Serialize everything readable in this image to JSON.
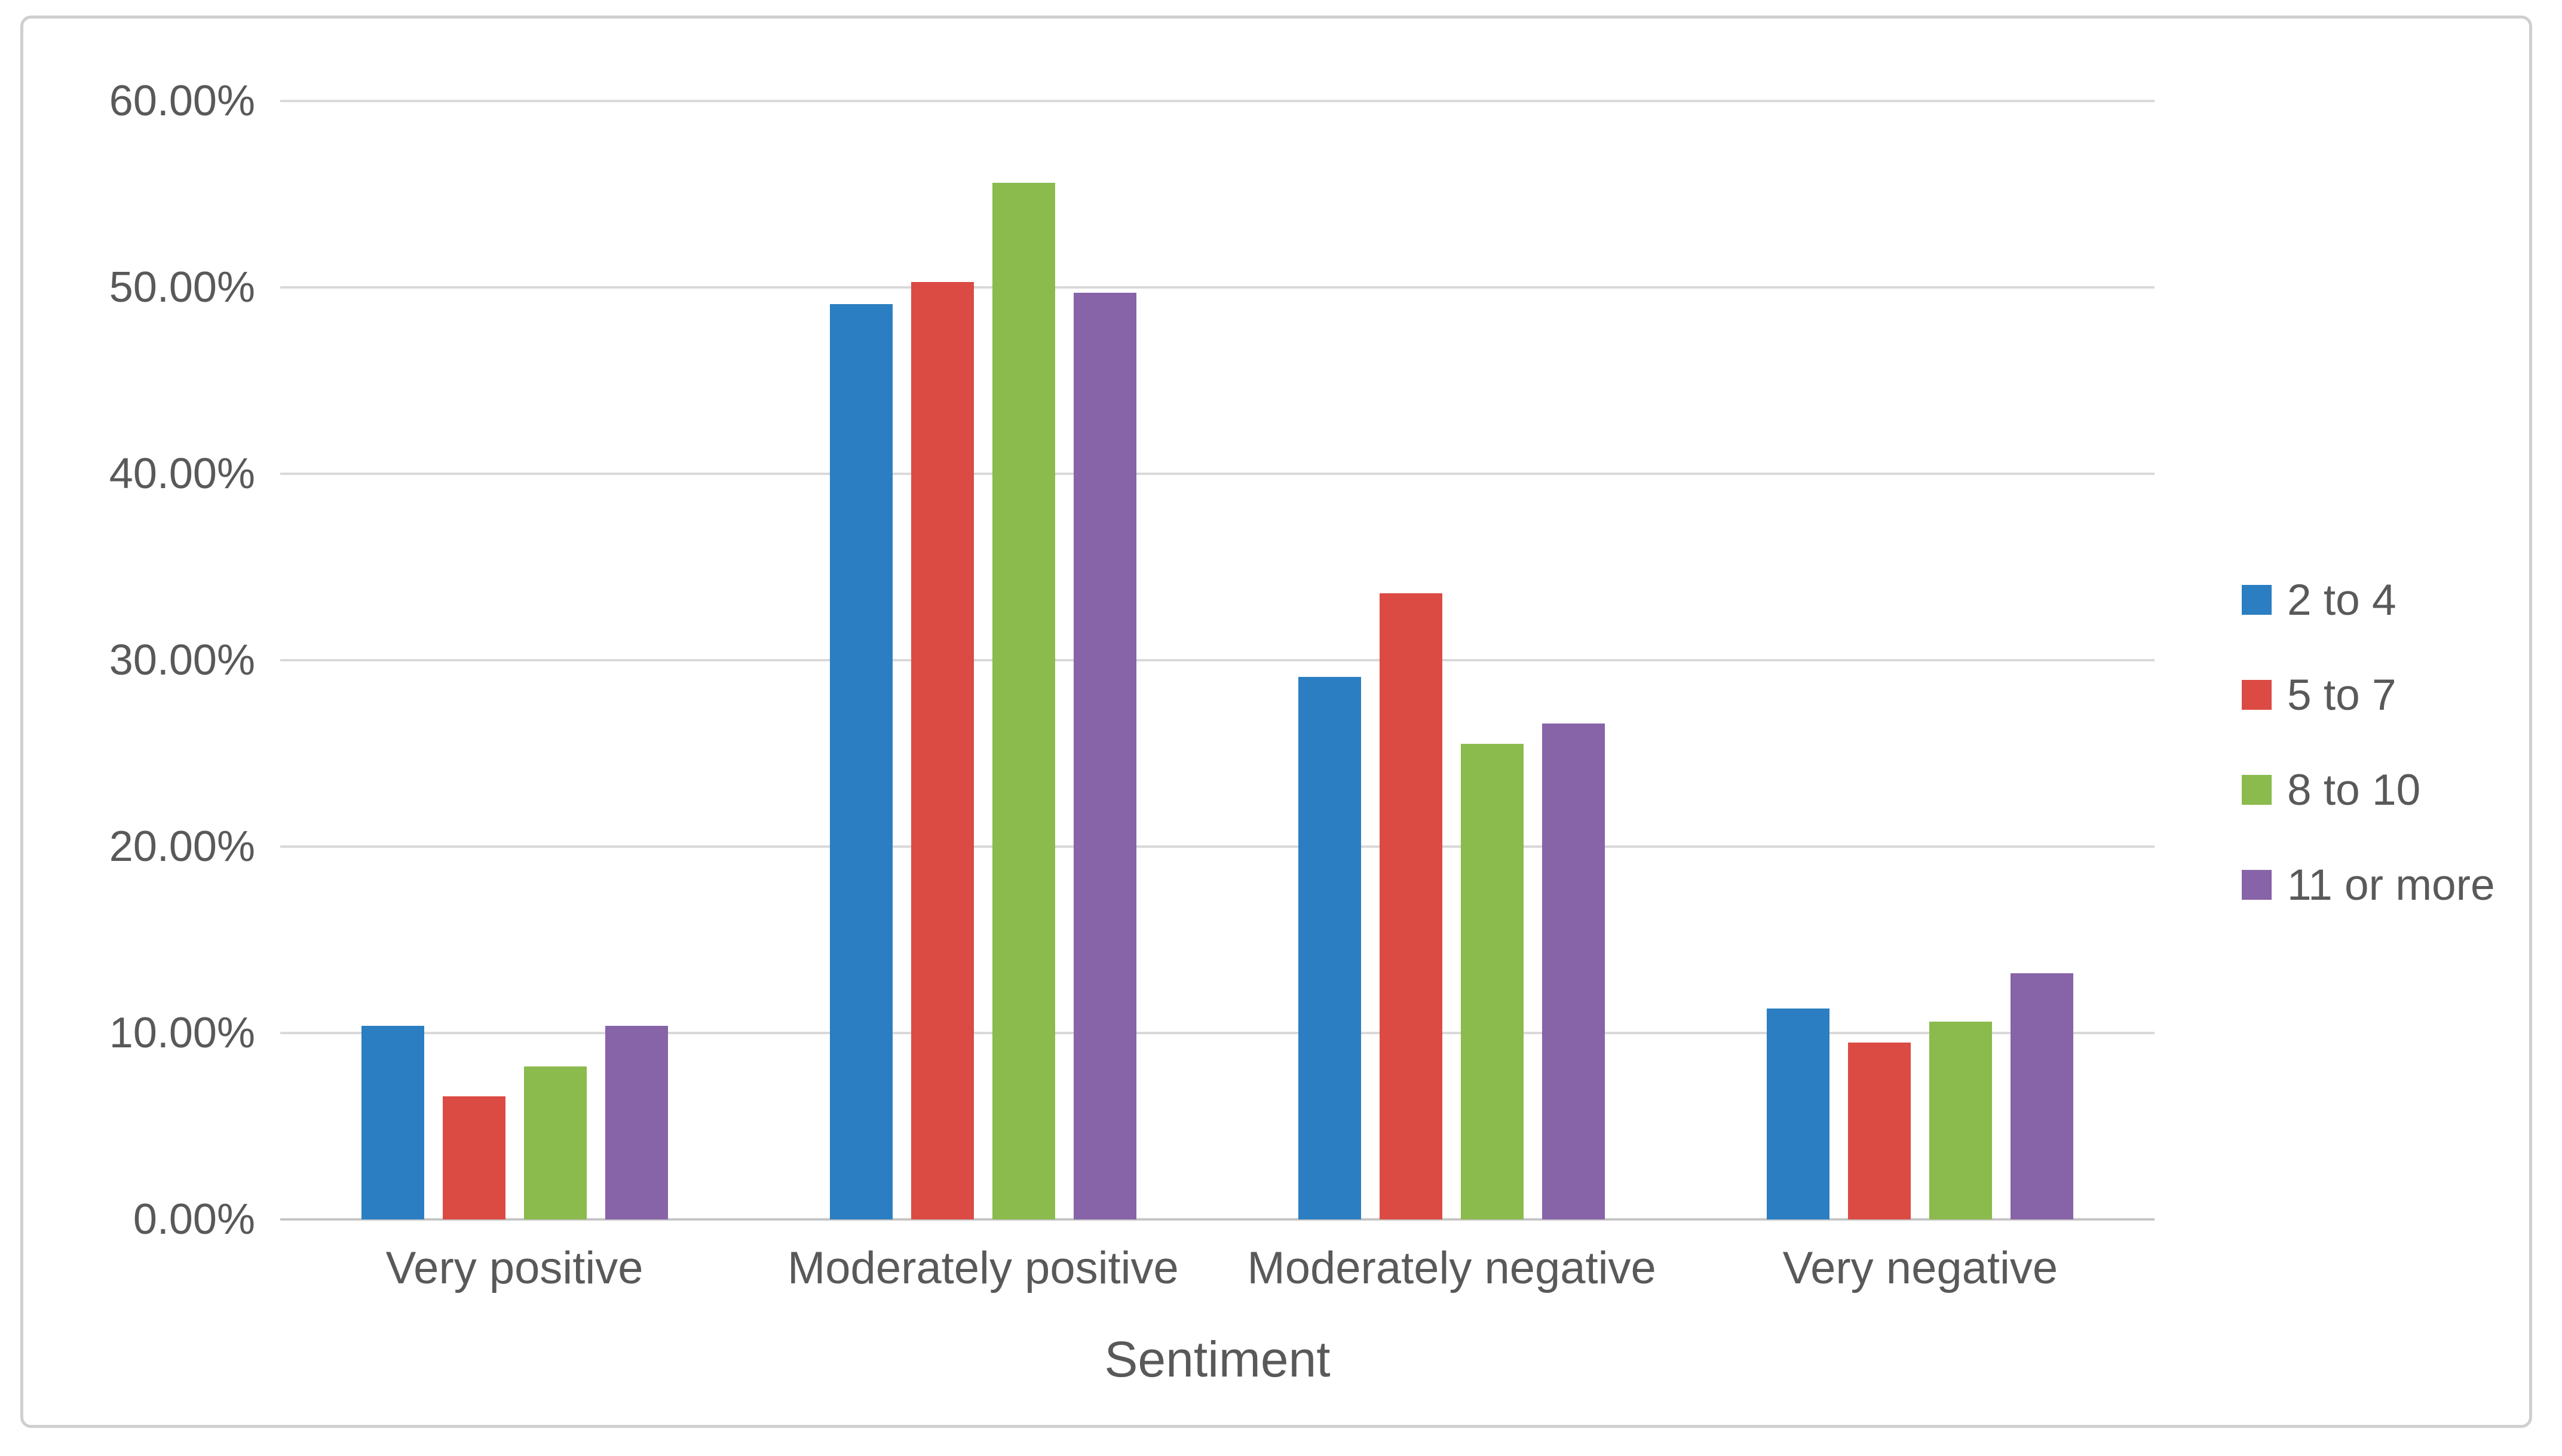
{
  "chart_data": {
    "type": "bar",
    "title": "",
    "categories": [
      "Very positive",
      "Moderately positive",
      "Moderately negative",
      "Very negative"
    ],
    "series": [
      {
        "name": "2 to 4",
        "color": "#2a7ec1",
        "values": [
          10.4,
          49.1,
          29.1,
          11.3
        ]
      },
      {
        "name": "5 to 7",
        "color": "#db4b44",
        "values": [
          6.6,
          50.3,
          33.6,
          9.5
        ]
      },
      {
        "name": "8 to 10",
        "color": "#8bba4d",
        "values": [
          8.2,
          55.6,
          25.5,
          10.6
        ]
      },
      {
        "name": "11 or more",
        "color": "#8763a8",
        "values": [
          10.4,
          49.7,
          26.6,
          13.2
        ]
      }
    ],
    "xlabel": "Sentiment",
    "ylabel": "",
    "ylim": [
      0,
      60
    ],
    "ytick_step": 10,
    "yticks": [
      "0.00%",
      "10.00%",
      "20.00%",
      "30.00%",
      "40.00%",
      "50.00%",
      "60.00%"
    ],
    "grid": true,
    "legend_position": "right"
  },
  "colors": {
    "background": "#ffffff",
    "frame_border": "#d0cece",
    "gridline": "#d9d9d9",
    "axis_line": "#c6c6c6",
    "text": "#595959"
  }
}
